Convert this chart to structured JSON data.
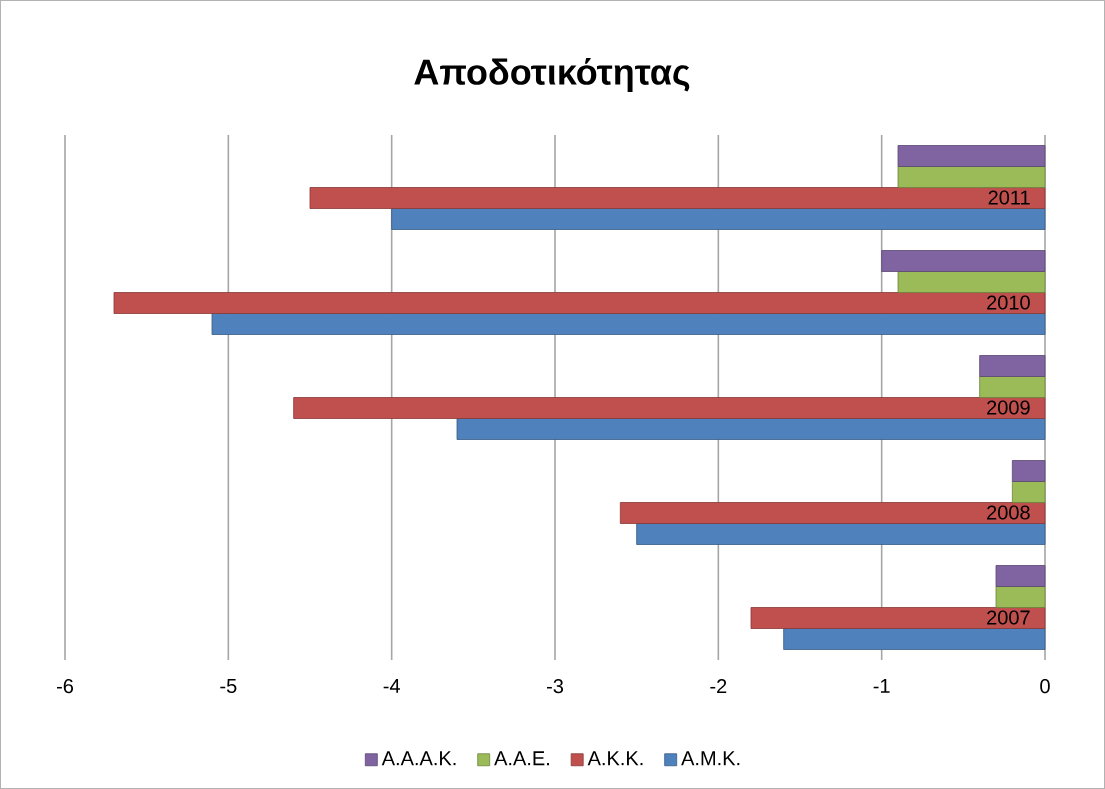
{
  "chart_data": {
    "type": "bar",
    "orientation": "horizontal",
    "title": "Αποδοτικότητας",
    "categories": [
      "2011",
      "2010",
      "2009",
      "2008",
      "2007"
    ],
    "series": [
      {
        "name": "Α.Α.Α.Κ.",
        "color": "#8064a2",
        "values": [
          -0.9,
          -1.0,
          -0.4,
          -0.2,
          -0.3
        ]
      },
      {
        "name": "Α.Α.Ε.",
        "color": "#9bbb59",
        "values": [
          -0.9,
          -0.9,
          -0.4,
          -0.2,
          -0.3
        ]
      },
      {
        "name": "Α.Κ.Κ.",
        "color": "#c0504d",
        "values": [
          -4.5,
          -5.7,
          -4.6,
          -2.6,
          -1.8
        ]
      },
      {
        "name": "Α.Μ.Κ.",
        "color": "#4f81bd",
        "values": [
          -4.0,
          -5.1,
          -3.6,
          -2.5,
          -1.6
        ]
      }
    ],
    "xlim": [
      -6,
      0
    ],
    "xticks": [
      -6,
      -5,
      -4,
      -3,
      -2,
      -1,
      0
    ],
    "grid": "x",
    "legend": "bottom"
  }
}
